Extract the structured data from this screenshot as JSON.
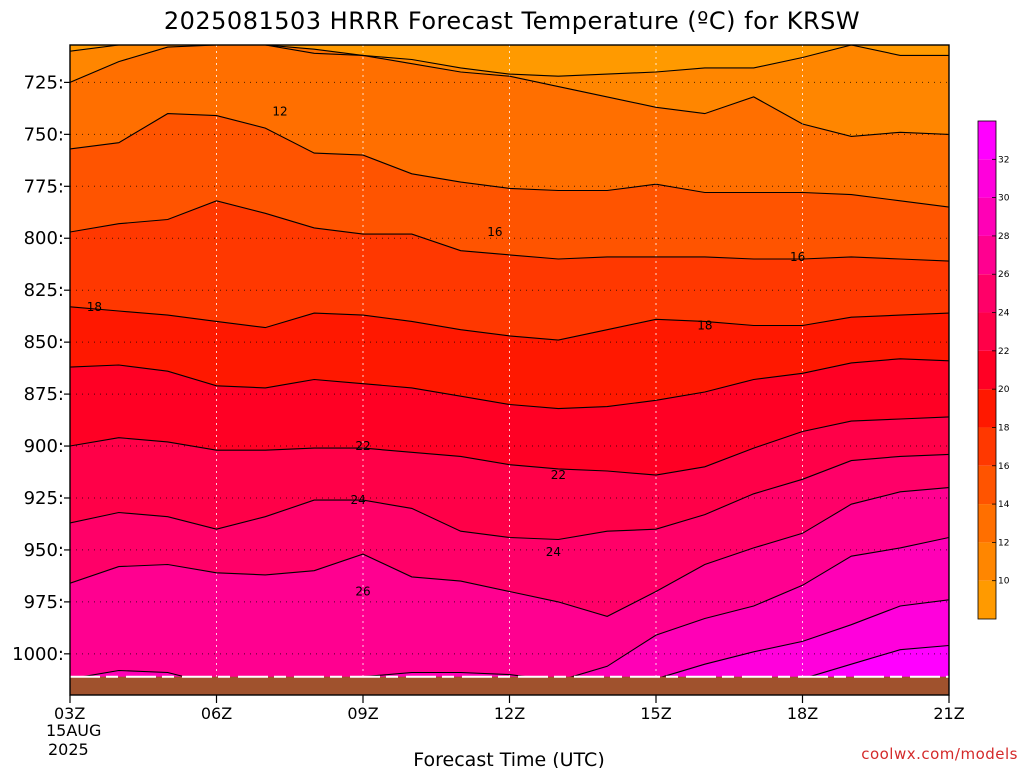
{
  "chart_data": {
    "type": "heatmap",
    "title": "2025081503 HRRR Forecast Temperature (ºC) for KRSW",
    "xlabel": "Forecast Time (UTC)",
    "ylabel": "",
    "credit": "coolwx.com/models",
    "x_ticks": [
      "03Z",
      "06Z",
      "09Z",
      "12Z",
      "15Z",
      "18Z",
      "21Z"
    ],
    "x_date_line1": "15AUG",
    "x_date_line2": "2025",
    "forecast_hours_utc": [
      3,
      4,
      5,
      6,
      7,
      8,
      9,
      10,
      11,
      12,
      13,
      14,
      15,
      16,
      17,
      18,
      19,
      20,
      21
    ],
    "y_axis": {
      "label_format": "trailing-colon",
      "unit": "hPa",
      "range": [
        1015,
        707
      ]
    },
    "y_ticks": [
      "725:",
      "750:",
      "775:",
      "800:",
      "825:",
      "850:",
      "875:",
      "900:",
      "925:",
      "950:",
      "975:",
      "1000:"
    ],
    "y_tick_values": [
      725,
      750,
      775,
      800,
      825,
      850,
      875,
      900,
      925,
      950,
      975,
      1000
    ],
    "surface_pressure_hpa": 1011,
    "contour_interval": 2,
    "colorbar": {
      "ticks": [
        10,
        12,
        14,
        16,
        18,
        20,
        22,
        24,
        26,
        28,
        30,
        32
      ],
      "levels": [
        8,
        10,
        12,
        14,
        16,
        18,
        20,
        22,
        24,
        26,
        28,
        30,
        32,
        34
      ],
      "colors": [
        "#ff9a00",
        "#ff8600",
        "#ff6f00",
        "#ff5400",
        "#ff3800",
        "#ff1800",
        "#ff0024",
        "#ff0048",
        "#ff0068",
        "#ff0090",
        "#ff00b6",
        "#ff00dc",
        "#ff00ff"
      ]
    },
    "contour_labels": [
      {
        "text": "12",
        "hour": 4.3,
        "hpa": 739
      },
      {
        "text": "16",
        "hour": 8.7,
        "hpa": 797
      },
      {
        "text": "16",
        "hour": 14.9,
        "hpa": 809
      },
      {
        "text": "18",
        "hour": 0.5,
        "hpa": 833
      },
      {
        "text": "18",
        "hour": 13.0,
        "hpa": 842
      },
      {
        "text": "22",
        "hour": 6.0,
        "hpa": 900
      },
      {
        "text": "22",
        "hour": 10.0,
        "hpa": 914
      },
      {
        "text": "24",
        "hour": 5.9,
        "hpa": 926
      },
      {
        "text": "24",
        "hour": 9.9,
        "hpa": 951
      },
      {
        "text": "26",
        "hour": 6.0,
        "hpa": 970
      }
    ],
    "isotherms": [
      {
        "value": 10,
        "hpa": [
          710,
          707,
          707,
          707,
          707,
          711,
          712,
          714,
          718,
          721,
          722,
          721,
          720,
          718,
          718,
          713,
          707,
          712,
          712
        ]
      },
      {
        "value": 12,
        "hpa": [
          725,
          715,
          708,
          707,
          707,
          709,
          712,
          716,
          720,
          722,
          727,
          732,
          737,
          740,
          732,
          745,
          751,
          749,
          750
        ]
      },
      {
        "value": 14,
        "hpa": [
          757,
          754,
          740,
          741,
          747,
          759,
          760,
          769,
          773,
          776,
          777,
          777,
          774,
          778,
          778,
          778,
          779,
          782,
          785
        ]
      },
      {
        "value": 16,
        "hpa": [
          797,
          793,
          791,
          782,
          788,
          795,
          798,
          798,
          806,
          808,
          810,
          809,
          809,
          809,
          810,
          810,
          809,
          810,
          811
        ]
      },
      {
        "value": 18,
        "hpa": [
          833,
          835,
          837,
          840,
          843,
          836,
          837,
          840,
          844,
          847,
          849,
          844,
          839,
          840,
          842,
          842,
          838,
          837,
          836
        ]
      },
      {
        "value": 20,
        "hpa": [
          862,
          861,
          864,
          871,
          872,
          868,
          870,
          872,
          876,
          880,
          882,
          881,
          878,
          874,
          868,
          865,
          860,
          858,
          859
        ]
      },
      {
        "value": 22,
        "hpa": [
          900,
          896,
          898,
          902,
          902,
          901,
          901,
          903,
          905,
          909,
          911,
          912,
          914,
          910,
          901,
          893,
          888,
          887,
          886
        ]
      },
      {
        "value": 24,
        "hpa": [
          937,
          932,
          934,
          940,
          934,
          926,
          926,
          930,
          941,
          944,
          945,
          941,
          940,
          933,
          923,
          916,
          907,
          905,
          904
        ]
      },
      {
        "value": 26,
        "hpa": [
          966,
          958,
          957,
          961,
          962,
          960,
          952,
          963,
          965,
          970,
          975,
          982,
          970,
          957,
          949,
          942,
          928,
          922,
          920
        ]
      },
      {
        "value": 28,
        "hpa": [
          1012,
          1008,
          1009,
          1015,
          1015,
          1013,
          1011,
          1009,
          1009,
          1010,
          1013,
          1006,
          991,
          983,
          977,
          967,
          953,
          949,
          944
        ]
      },
      {
        "value": 30,
        "hpa": [
          1015,
          1015,
          1015,
          1015,
          1015,
          1015,
          1015,
          1015,
          1015,
          1015,
          1015,
          1015,
          1012,
          1005,
          999,
          994,
          986,
          977,
          974
        ]
      },
      {
        "value": 32,
        "hpa": [
          1015,
          1015,
          1015,
          1015,
          1015,
          1015,
          1015,
          1015,
          1015,
          1015,
          1015,
          1015,
          1015,
          1015,
          1015,
          1012,
          1005,
          998,
          996
        ]
      }
    ]
  }
}
